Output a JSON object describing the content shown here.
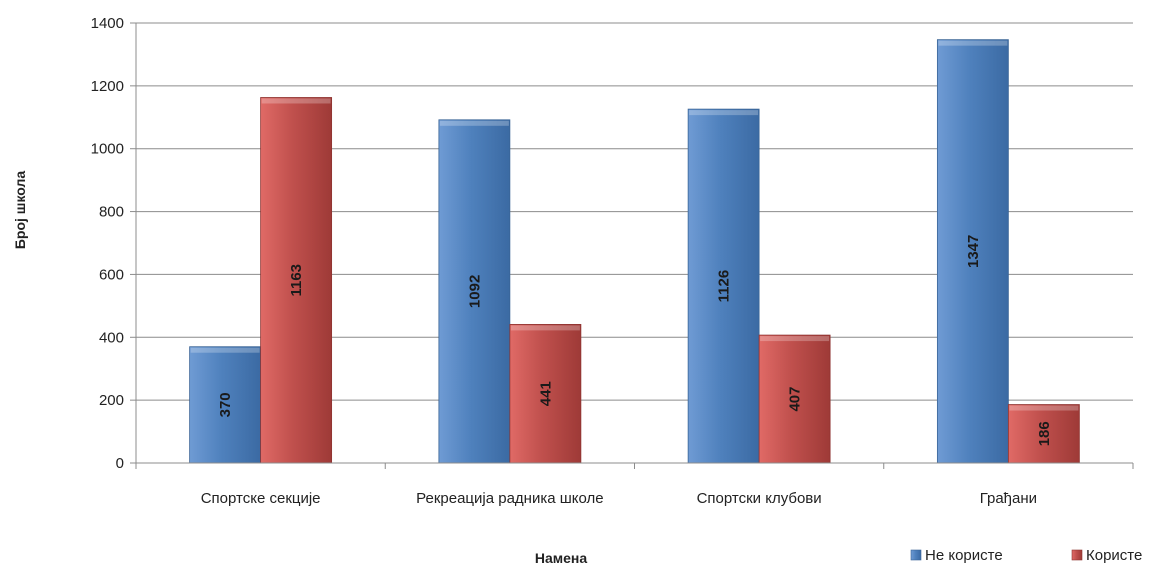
{
  "chart_data": {
    "type": "bar",
    "title": "",
    "xlabel": "Намена",
    "ylabel": "Број школа",
    "ylim": [
      0,
      1400
    ],
    "yticks": [
      0,
      200,
      400,
      600,
      800,
      1000,
      1200,
      1400
    ],
    "grid": true,
    "legend_position": "bottom-right",
    "categories": [
      "Спортске секције",
      "Рекреација радника школе",
      "Спортски клубови",
      "Грађани"
    ],
    "series": [
      {
        "name": "Не користе",
        "color": "#4f81bd",
        "values": [
          370,
          1092,
          1126,
          1347
        ]
      },
      {
        "name": "Користе",
        "color": "#c0504d",
        "values": [
          1163,
          441,
          407,
          186
        ]
      }
    ]
  }
}
